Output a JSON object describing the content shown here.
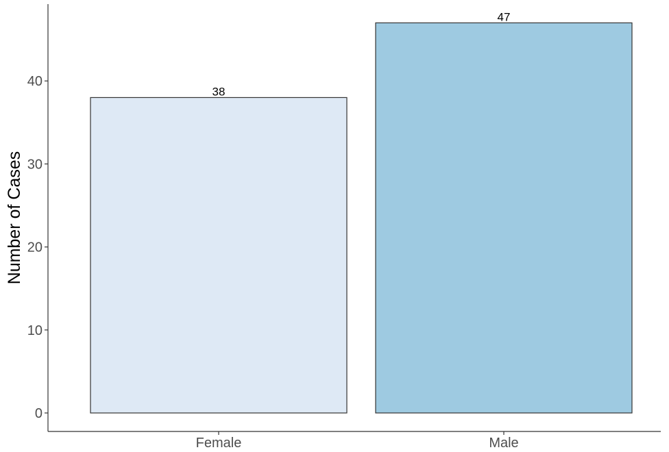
{
  "chart_data": {
    "type": "bar",
    "categories": [
      "Female",
      "Male"
    ],
    "values": [
      38,
      47
    ],
    "data_labels": [
      "38",
      "47"
    ],
    "title": "",
    "xlabel": "",
    "ylabel": "Number of Cases",
    "ylim": [
      0,
      50
    ],
    "yticks": [
      0,
      10,
      20,
      30,
      40
    ],
    "grid": false,
    "legend": "none",
    "bar_colors": [
      "#dee9f5",
      "#9ecae1"
    ],
    "bar_outline_color": "#333333",
    "axis_color": "#333333"
  }
}
